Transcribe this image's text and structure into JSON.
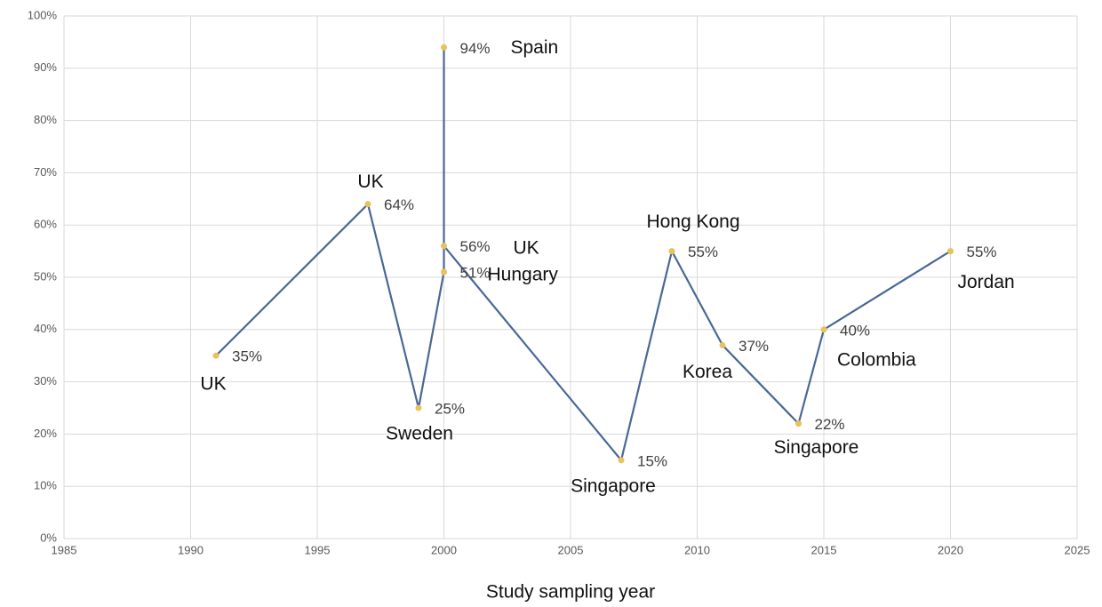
{
  "chart_data": {
    "type": "line",
    "xlabel": "Study sampling year",
    "x": [
      1991,
      1997,
      1999,
      2000,
      2000,
      2000,
      2007,
      2009,
      2011,
      2014,
      2015,
      2020
    ],
    "values": [
      35,
      64,
      25,
      51,
      94,
      56,
      15,
      55,
      37,
      22,
      40,
      55
    ],
    "value_labels": [
      "35%",
      "64%",
      "25%",
      "51%",
      "94%",
      "56%",
      "15%",
      "55%",
      "37%",
      "22%",
      "40%",
      "55%"
    ],
    "point_labels": [
      "UK",
      "UK",
      "Sweden",
      "Hungary",
      "Spain",
      "UK",
      "Singapore",
      "Hong Kong",
      "Korea",
      "Singapore",
      "Colombia",
      "Jordan"
    ],
    "line_color": "#4a6896",
    "marker_color": "#e8c25a",
    "xlim": [
      1985,
      2025
    ],
    "xticks": [
      1985,
      1990,
      1995,
      2000,
      2005,
      2010,
      2015,
      2020,
      2025
    ],
    "ylim": [
      0,
      100
    ],
    "yticks": [
      {
        "value": 0,
        "label": "0%"
      },
      {
        "value": 10,
        "label": "10%"
      },
      {
        "value": 20,
        "label": "20%"
      },
      {
        "value": 30,
        "label": "30%"
      },
      {
        "value": 40,
        "label": "40%"
      },
      {
        "value": 50,
        "label": "50%"
      },
      {
        "value": 60,
        "label": "60%"
      },
      {
        "value": 70,
        "label": "70%"
      },
      {
        "value": 80,
        "label": "80%"
      },
      {
        "value": 90,
        "label": "90%"
      },
      {
        "value": 100,
        "label": "100%"
      }
    ],
    "grid": true
  }
}
